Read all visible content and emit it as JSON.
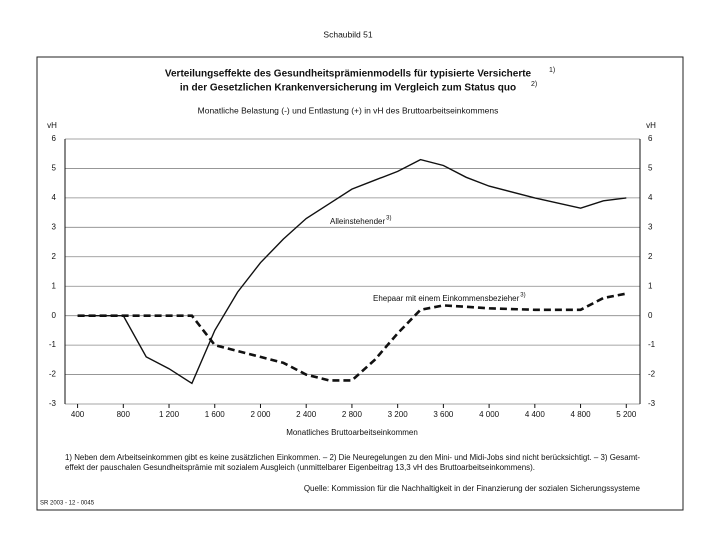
{
  "header": "Schaubild 51",
  "chart_data": {
    "type": "line",
    "title": [
      "Verteilungseffekte des Gesundheitsprämienmodells für typisierte Versicherte",
      "in der Gesetzlichen Krankenversicherung im Vergleich zum Status quo"
    ],
    "title_notes": [
      "1)",
      "2)"
    ],
    "subtitle": "Monatliche Belastung (-) und Entlastung (+) in vH des Bruttoarbeitseinkommens",
    "y_unit": "vH",
    "x_label": "Monatliches Bruttoarbeitseinkommen",
    "x": [
      400,
      800,
      1000,
      1200,
      1400,
      1600,
      1800,
      2000,
      2200,
      2400,
      2600,
      2800,
      3000,
      3200,
      3400,
      3600,
      3800,
      4000,
      4400,
      4800,
      5000,
      5200
    ],
    "series": [
      {
        "name": "Alleinstehender",
        "note": "3)",
        "color": "#111111",
        "dash": false,
        "values": [
          0,
          0,
          -1.4,
          -1.8,
          -2.3,
          -0.5,
          0.8,
          1.8,
          2.6,
          3.3,
          3.8,
          4.3,
          4.6,
          4.9,
          5.3,
          5.1,
          4.7,
          4.4,
          4.0,
          3.65,
          3.9,
          4.0
        ]
      },
      {
        "name": "Ehepaar mit einem Einkommensbezieher",
        "note": "3)",
        "color": "#111111",
        "dash": true,
        "values": [
          0,
          0,
          0,
          0,
          0,
          -1.0,
          -1.2,
          -1.4,
          -1.6,
          -2.0,
          -2.2,
          -2.2,
          -1.5,
          -0.6,
          0.2,
          0.35,
          0.3,
          0.25,
          0.2,
          0.2,
          0.6,
          0.75
        ]
      }
    ],
    "xlim": [
      290,
      5320
    ],
    "xticks": [
      {
        "value": 400,
        "label": "400"
      },
      {
        "value": 800,
        "label": "800"
      },
      {
        "value": 1200,
        "label": "1 200"
      },
      {
        "value": 1600,
        "label": "1 600"
      },
      {
        "value": 2000,
        "label": "2 000"
      },
      {
        "value": 2400,
        "label": "2 400"
      },
      {
        "value": 2800,
        "label": "2 800"
      },
      {
        "value": 3200,
        "label": "3 200"
      },
      {
        "value": 3600,
        "label": "3 600"
      },
      {
        "value": 4000,
        "label": "4 000"
      },
      {
        "value": 4400,
        "label": "4 400"
      },
      {
        "value": 4800,
        "label": "4 800"
      },
      {
        "value": 5200,
        "label": "5 200"
      }
    ],
    "ylim": [
      -3,
      6
    ],
    "yticks": [
      6,
      5,
      4,
      3,
      2,
      1,
      0,
      -1,
      -2,
      -3
    ],
    "grid": true,
    "footnotes": [
      "1) Neben dem Arbeitseinkommen gibt es keine zusätzlichen Einkommen. – 2) Die Neuregelungen zu den Mini- und Midi-Jobs sind nicht berücksichtigt. – 3) Gesamt-",
      "effekt der pauschalen Gesundheitsprämie mit sozialem Ausgleich (unmittelbarer Eigenbeitrag 13,3 vH des Bruttoarbeitseinkommens)."
    ],
    "source": "Quelle: Kommission für die Nachhaltigkeit in der Finanzierung der sozialen Sicherungssysteme",
    "code": "SR 2003 - 12 - 0045"
  }
}
